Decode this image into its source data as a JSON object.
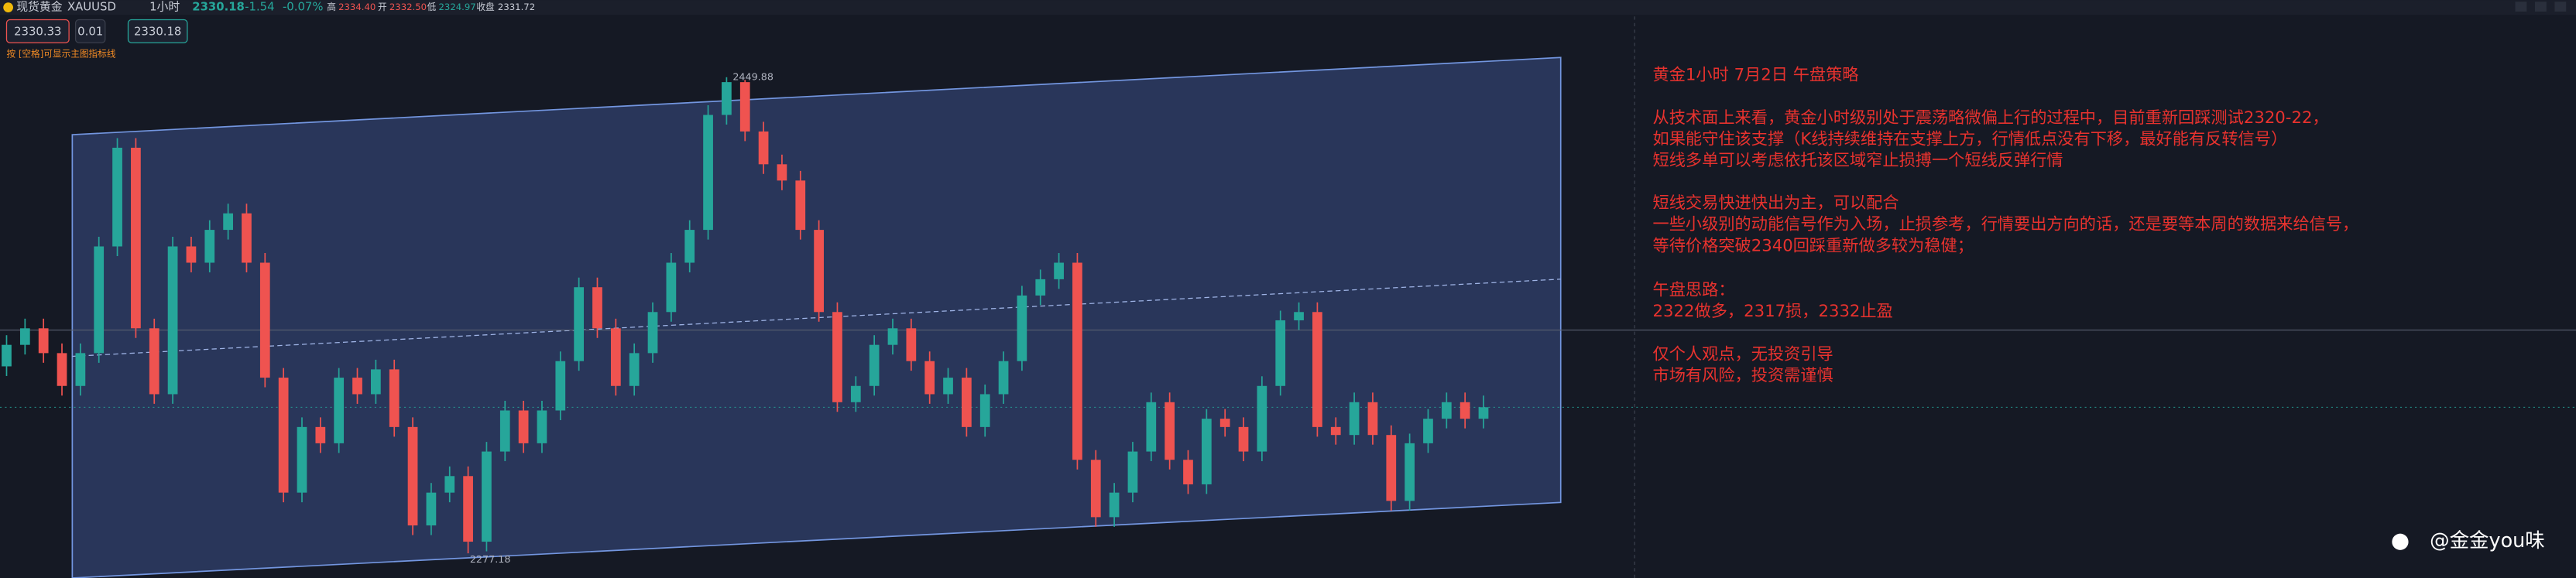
{
  "toolbar": {
    "symbol_name": "现货黄金",
    "symbol": "XAUUSD",
    "interval": "1小时",
    "last": "2330.18",
    "change": "-1.54",
    "change_pct": "-0.07%",
    "high_label": "高",
    "high": "2334.40",
    "open_label": "开",
    "open": "2332.50",
    "low_label": "低",
    "low": "2324.97",
    "close_label": "收盘",
    "close": "2331.72"
  },
  "order": {
    "sell": "2330.33",
    "qty": "0.01",
    "buy": "2330.18"
  },
  "hint": "按 [空格]可显示主图指标线",
  "chart": {
    "type": "candlestick",
    "up_color": "#26a69a",
    "down_color": "#ef5350",
    "max_label": 2449.88,
    "min_label": 2277.18,
    "open": [
      2345.0,
      2352.8,
      2358.8,
      2349.8,
      2337.9,
      2349.8,
      2388.5,
      2424.3,
      2358.8,
      2334.9,
      2388.5,
      2382.6,
      2394.5,
      2400.5,
      2382.6,
      2340.9,
      2299.2,
      2323.0,
      2317.1,
      2340.9,
      2334.9,
      2343.9,
      2323.0,
      2287.3,
      2299.2,
      2305.2,
      2281.4,
      2314.1,
      2329.0,
      2317.1,
      2329.0,
      2346.9,
      2373.7,
      2358.8,
      2337.9,
      2349.8,
      2364.7,
      2382.6,
      2394.5,
      2436.2,
      2448.1,
      2430.2,
      2418.3,
      2412.4,
      2394.5,
      2364.7,
      2332.0,
      2337.9,
      2352.8,
      2358.8,
      2346.9,
      2334.9,
      2340.9,
      2323.0,
      2334.9,
      2346.9,
      2370.7,
      2376.6,
      2382.6,
      2311.1,
      2290.3,
      2299.2,
      2314.1,
      2332.0,
      2311.1,
      2302.2,
      2326.0,
      2323.0,
      2314.1,
      2337.9,
      2361.7,
      2364.7,
      2323.0,
      2320.1,
      2332.0,
      2320.1,
      2296.2,
      2317.1,
      2326.0,
      2332.0,
      2326.0
    ],
    "high": [
      2356.3,
      2362.3,
      2362.3,
      2353.3,
      2353.3,
      2392.0,
      2427.8,
      2427.8,
      2362.3,
      2392.0,
      2392.0,
      2398.0,
      2404.0,
      2404.0,
      2386.1,
      2344.4,
      2326.5,
      2326.5,
      2344.4,
      2344.4,
      2347.4,
      2347.4,
      2326.5,
      2302.7,
      2308.7,
      2308.7,
      2317.6,
      2332.5,
      2332.5,
      2332.5,
      2350.4,
      2377.2,
      2377.2,
      2362.3,
      2353.3,
      2368.2,
      2386.1,
      2398.0,
      2439.7,
      2449.88,
      2448.9,
      2433.7,
      2421.8,
      2415.9,
      2398.0,
      2368.2,
      2341.4,
      2356.3,
      2362.3,
      2362.3,
      2350.4,
      2344.4,
      2344.4,
      2338.4,
      2350.4,
      2374.2,
      2380.1,
      2386.1,
      2386.1,
      2314.6,
      2302.7,
      2317.6,
      2335.5,
      2335.5,
      2314.6,
      2329.5,
      2329.5,
      2326.5,
      2341.4,
      2365.2,
      2368.2,
      2368.2,
      2326.5,
      2335.5,
      2335.5,
      2323.6,
      2320.6,
      2329.5,
      2335.5,
      2335.5,
      2334.4
    ],
    "low": [
      2341.5,
      2349.3,
      2346.3,
      2334.4,
      2334.4,
      2346.3,
      2385.0,
      2355.3,
      2331.4,
      2331.4,
      2379.1,
      2379.1,
      2391.0,
      2379.1,
      2337.4,
      2295.7,
      2295.7,
      2313.6,
      2313.6,
      2331.4,
      2331.4,
      2319.5,
      2283.8,
      2283.8,
      2295.7,
      2277.18,
      2277.9,
      2310.6,
      2313.6,
      2313.6,
      2325.5,
      2343.4,
      2355.3,
      2334.4,
      2334.4,
      2346.3,
      2361.2,
      2379.1,
      2391.0,
      2432.7,
      2426.7,
      2414.8,
      2408.9,
      2391.0,
      2361.2,
      2328.5,
      2328.5,
      2334.4,
      2349.3,
      2343.4,
      2331.4,
      2331.4,
      2319.5,
      2319.5,
      2331.4,
      2343.4,
      2367.2,
      2373.1,
      2307.6,
      2286.8,
      2286.8,
      2295.7,
      2310.6,
      2307.6,
      2298.7,
      2298.7,
      2319.5,
      2310.6,
      2310.6,
      2334.4,
      2358.2,
      2319.5,
      2316.6,
      2316.6,
      2316.6,
      2292.7,
      2292.7,
      2313.6,
      2322.5,
      2322.5,
      2322.5
    ],
    "close": [
      2352.8,
      2358.8,
      2349.8,
      2337.9,
      2349.8,
      2388.5,
      2424.3,
      2358.8,
      2334.9,
      2388.5,
      2382.6,
      2394.5,
      2400.5,
      2382.6,
      2340.9,
      2299.2,
      2323.0,
      2317.1,
      2340.9,
      2334.9,
      2343.9,
      2323.0,
      2287.3,
      2299.2,
      2305.2,
      2281.4,
      2314.1,
      2329.0,
      2317.1,
      2329.0,
      2346.9,
      2373.7,
      2358.8,
      2337.9,
      2349.8,
      2364.7,
      2382.6,
      2394.5,
      2436.2,
      2448.1,
      2430.2,
      2418.3,
      2412.4,
      2394.5,
      2364.7,
      2332.0,
      2337.9,
      2352.8,
      2358.8,
      2346.9,
      2334.9,
      2340.9,
      2323.0,
      2334.9,
      2346.9,
      2370.7,
      2376.6,
      2382.6,
      2311.1,
      2290.3,
      2299.2,
      2314.1,
      2332.0,
      2311.1,
      2302.2,
      2326.0,
      2323.0,
      2314.1,
      2337.9,
      2361.7,
      2364.7,
      2323.0,
      2320.1,
      2332.0,
      2320.1,
      2296.2,
      2317.1,
      2326.0,
      2332.0,
      2326.0,
      2330.18
    ]
  },
  "notes": {
    "title": "黄金1小时 7月2日 午盘策略",
    "lines": [
      "从技术面上来看，黄金小时级别处于震荡略微偏上行的过程中，目前重新回踩测试2320-22，",
      "如果能守住该支撑（K线持续维持在支撑上方，行情低点没有下移，最好能有反转信号）",
      "短线多单可以考虑依托该区域窄止损搏一个短线反弹行情",
      "短线交易快进快出为主，可以配合",
      "一些小级别的动能信号作为入场，止损参考，行情要出方向的话，还是要等本周的数据来给信号，",
      "等待价格突破2340回踩重新做多较为稳健；",
      "午盘思路：",
      "2322做多，2317损，2332止盈",
      "仅个人观点，无投资引导",
      "市场有风险，投资需谨慎"
    ]
  },
  "watermark": "@金金you味"
}
